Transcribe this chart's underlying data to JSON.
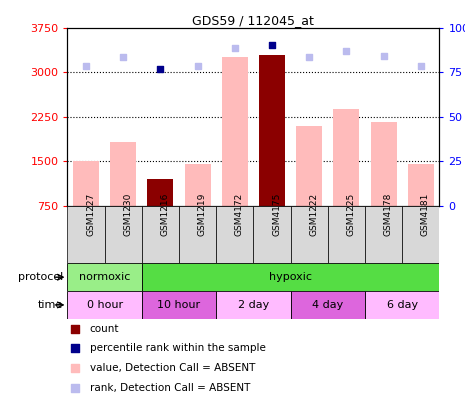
{
  "title": "GDS59 / 112045_at",
  "samples": [
    "GSM1227",
    "GSM1230",
    "GSM1216",
    "GSM1219",
    "GSM4172",
    "GSM4175",
    "GSM1222",
    "GSM1225",
    "GSM4178",
    "GSM4181"
  ],
  "bar_values": [
    1500,
    1820,
    1200,
    1460,
    3260,
    3290,
    2090,
    2390,
    2170,
    1460
  ],
  "bar_colors": [
    "#ffbbbb",
    "#ffbbbb",
    "#8b0000",
    "#ffbbbb",
    "#ffbbbb",
    "#8b0000",
    "#ffbbbb",
    "#ffbbbb",
    "#ffbbbb",
    "#ffbbbb"
  ],
  "rank_dots": [
    3110,
    3250,
    3050,
    3110,
    3410,
    3460,
    3250,
    3360,
    3270,
    3100
  ],
  "rank_dot_colors": [
    "#bbbbee",
    "#bbbbee",
    "#00008b",
    "#bbbbee",
    "#bbbbee",
    "#00008b",
    "#bbbbee",
    "#bbbbee",
    "#bbbbee",
    "#bbbbee"
  ],
  "ylim_left": [
    750,
    3750
  ],
  "yticks_left": [
    750,
    1500,
    2250,
    3000,
    3750
  ],
  "hlines": [
    1500,
    2250,
    3000
  ],
  "protocol_groups": [
    {
      "label": "normoxic",
      "start": 0,
      "end": 2,
      "color": "#99ee88"
    },
    {
      "label": "hypoxic",
      "start": 2,
      "end": 10,
      "color": "#55dd44"
    }
  ],
  "time_groups": [
    {
      "label": "0 hour",
      "start": 0,
      "end": 2,
      "color": "#ffbbff"
    },
    {
      "label": "10 hour",
      "start": 2,
      "end": 4,
      "color": "#dd66dd"
    },
    {
      "label": "2 day",
      "start": 4,
      "end": 6,
      "color": "#ffbbff"
    },
    {
      "label": "4 day",
      "start": 6,
      "end": 8,
      "color": "#dd66dd"
    },
    {
      "label": "6 day",
      "start": 8,
      "end": 10,
      "color": "#ffbbff"
    }
  ],
  "legend_items": [
    {
      "label": "count",
      "color": "#8b0000"
    },
    {
      "label": "percentile rank within the sample",
      "color": "#00008b"
    },
    {
      "label": "value, Detection Call = ABSENT",
      "color": "#ffbbbb"
    },
    {
      "label": "rank, Detection Call = ABSENT",
      "color": "#bbbbee"
    }
  ],
  "background_color": "#ffffff"
}
